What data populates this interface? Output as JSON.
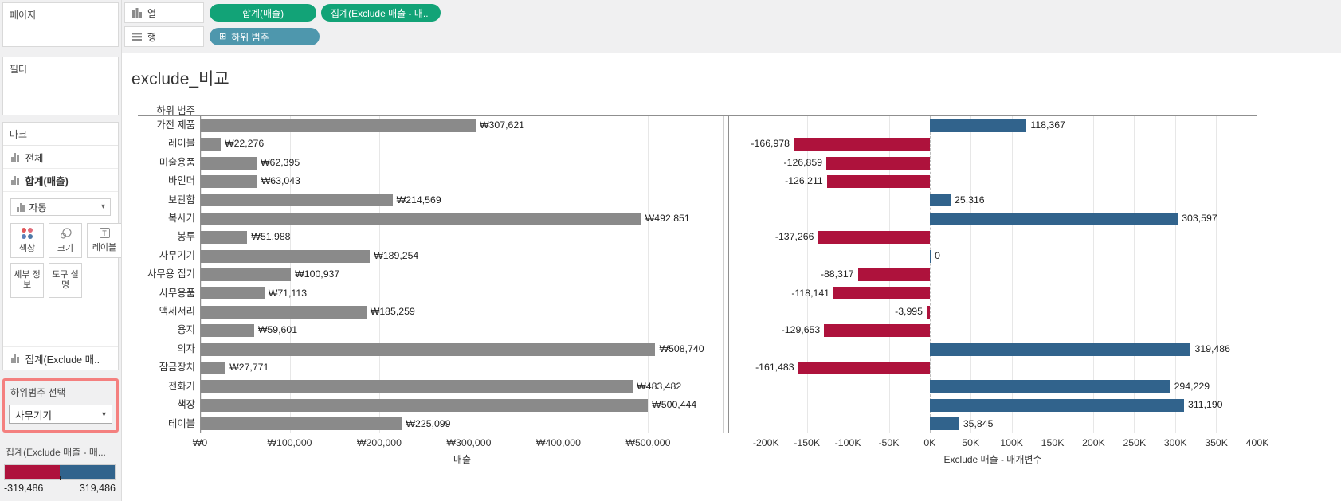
{
  "colors": {
    "pill_measure_green": "#12a377",
    "pill_dimension_blue": "#4e97ad",
    "bar_gray": "#8a8a8a",
    "bar_positive_blue": "#31638c",
    "bar_negative_red": "#ae123c",
    "highlight_border": "#f4807f"
  },
  "icons": {
    "columns_shelf_icon": "columns-bars",
    "rows_shelf_icon": "rows-lines",
    "expand_icon": "⊞",
    "caret_icon": "▾"
  },
  "sidebar": {
    "pages_title": "페이지",
    "filters_title": "필터",
    "marks": {
      "title": "마크",
      "card_all": "전체",
      "card_sales": "합계(매출)",
      "card_exclude": "집계(Exclude 매..",
      "mark_type": "자동",
      "btn_color": "색상",
      "btn_size": "크기",
      "btn_label": "레이블",
      "btn_detail": "세부 정보",
      "btn_tooltip": "도구 설명"
    },
    "parameter": {
      "title": "하위범주 선택",
      "value": "사무기기"
    },
    "legend": {
      "title": "집계(Exclude 매출 - 매...",
      "min_label": "-319,486",
      "max_label": "319,486"
    }
  },
  "shelves": {
    "columns_label": "열",
    "rows_label": "행",
    "column_pills": [
      "합계(매출)",
      "집계(Exclude 매출 - 매.."
    ],
    "row_pill": "하위 범주"
  },
  "main": {
    "title": "exclude_비교",
    "row_header": "하위 범주"
  },
  "chart_data": [
    {
      "type": "bar",
      "orientation": "horizontal",
      "title": "매출",
      "categories": [
        "가전 제품",
        "레이블",
        "미술용품",
        "바인더",
        "보관함",
        "복사기",
        "봉투",
        "사무기기",
        "사무용 집기",
        "사무용품",
        "액세서리",
        "용지",
        "의자",
        "잠금장치",
        "전화기",
        "책장",
        "테이블"
      ],
      "values": [
        307621,
        22276,
        62395,
        63043,
        214569,
        492851,
        51988,
        189254,
        100937,
        71113,
        185259,
        59601,
        508740,
        27771,
        483482,
        500444,
        225099
      ],
      "value_labels": [
        "₩307,621",
        "₩22,276",
        "₩62,395",
        "₩63,043",
        "₩214,569",
        "₩492,851",
        "₩51,988",
        "₩189,254",
        "₩100,937",
        "₩71,113",
        "₩185,259",
        "₩59,601",
        "₩508,740",
        "₩27,771",
        "₩483,482",
        "₩500,444",
        "₩225,099"
      ],
      "xlabel": "매출",
      "xtick_labels": [
        "₩0",
        "₩100,000",
        "₩200,000",
        "₩300,000",
        "₩400,000",
        "₩500,000"
      ],
      "xtick_values": [
        0,
        100000,
        200000,
        300000,
        400000,
        500000
      ],
      "xlim": [
        0,
        585000
      ],
      "bar_color": "#8a8a8a",
      "grid": true
    },
    {
      "type": "bar",
      "orientation": "horizontal",
      "title": "Exclude 매출 - 매개변수",
      "categories": [
        "가전 제품",
        "레이블",
        "미술용품",
        "바인더",
        "보관함",
        "복사기",
        "봉투",
        "사무기기",
        "사무용 집기",
        "사무용품",
        "액세서리",
        "용지",
        "의자",
        "잠금장치",
        "전화기",
        "책장",
        "테이블"
      ],
      "values": [
        118367,
        -166978,
        -126859,
        -126211,
        25316,
        303597,
        -137266,
        0,
        -88317,
        -118141,
        -3995,
        -129653,
        319486,
        -161483,
        294229,
        311190,
        35845
      ],
      "value_labels": [
        "118,367",
        "-166,978",
        "-126,859",
        "-126,211",
        "25,316",
        "303,597",
        "-137,266",
        "0",
        "-88,317",
        "-118,141",
        "-3,995",
        "-129,653",
        "319,486",
        "-161,483",
        "294,229",
        "311,190",
        "35,845"
      ],
      "xlabel": "Exclude 매출 - 매개변수",
      "xtick_labels": [
        "-200K",
        "-150K",
        "-100K",
        "-50K",
        "0K",
        "50K",
        "100K",
        "150K",
        "200K",
        "250K",
        "300K",
        "350K",
        "400K"
      ],
      "xtick_values": [
        -200000,
        -150000,
        -100000,
        -50000,
        0,
        50000,
        100000,
        150000,
        200000,
        250000,
        300000,
        350000,
        400000
      ],
      "xlim": [
        -246000,
        400000
      ],
      "positive_color": "#31638c",
      "negative_color": "#ae123c",
      "grid": true,
      "zero_line": "dashed"
    }
  ]
}
